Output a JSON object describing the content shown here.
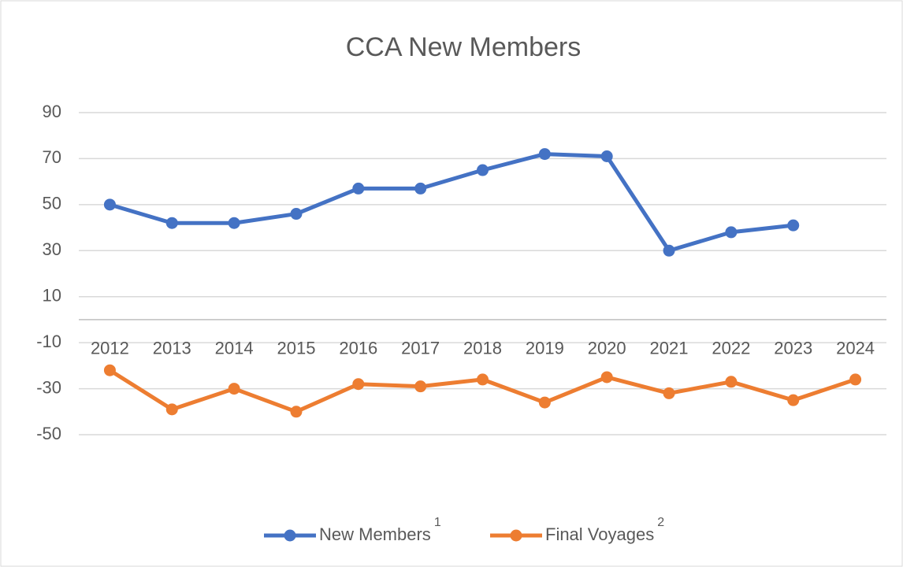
{
  "chart_data": {
    "type": "line",
    "title": "CCA New Members",
    "categories": [
      "2012",
      "2013",
      "2014",
      "2015",
      "2016",
      "2017",
      "2018",
      "2019",
      "2020",
      "2021",
      "2022",
      "2023",
      "2024"
    ],
    "series": [
      {
        "name": "New Members",
        "footnote": "1",
        "color": "#4472c4",
        "values": [
          50,
          42,
          42,
          46,
          57,
          57,
          65,
          72,
          71,
          30,
          38,
          41,
          null
        ]
      },
      {
        "name": "Final Voyages",
        "footnote": "2",
        "color": "#ed7d31",
        "values": [
          -22,
          -39,
          -30,
          -40,
          -28,
          -29,
          -26,
          -36,
          -25,
          -32,
          -27,
          -35,
          -26
        ]
      }
    ],
    "ylim": [
      -50,
      90
    ],
    "yticks": [
      90,
      70,
      50,
      30,
      10,
      -10,
      -30,
      -50
    ],
    "grid": true,
    "legend": "bottom"
  }
}
